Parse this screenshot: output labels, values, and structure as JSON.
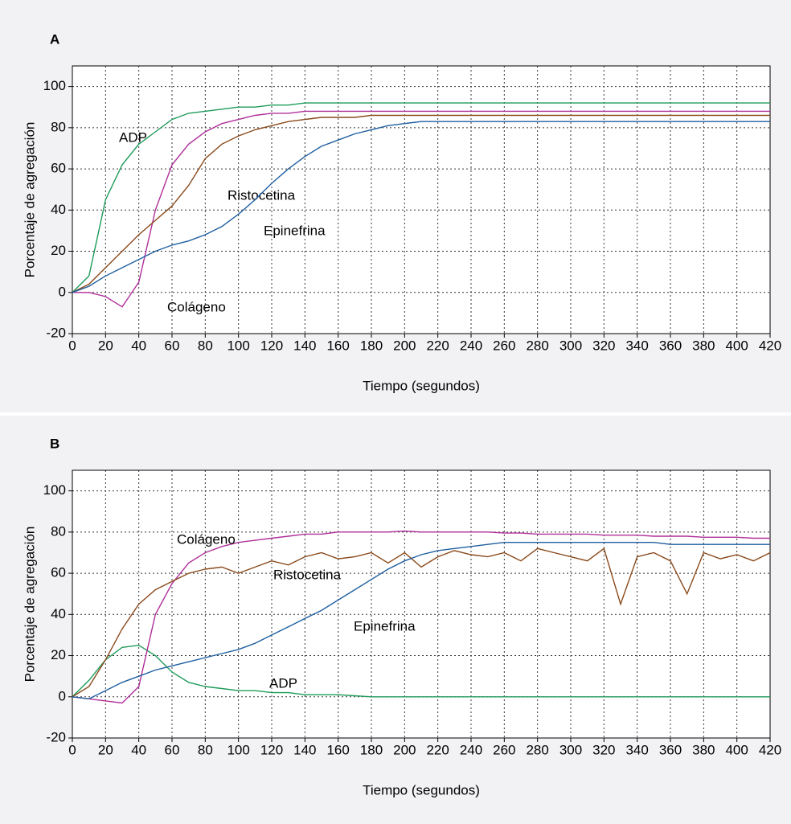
{
  "chart_data": [
    {
      "type": "line",
      "title": "A",
      "x_label": "Tiempo (segundos)",
      "y_label": "Porcentaje de agregación",
      "x": [
        0,
        10,
        20,
        30,
        40,
        50,
        60,
        70,
        80,
        90,
        100,
        110,
        120,
        130,
        140,
        150,
        160,
        170,
        180,
        190,
        200,
        210,
        220,
        230,
        240,
        250,
        260,
        270,
        280,
        290,
        300,
        310,
        320,
        330,
        340,
        350,
        360,
        370,
        380,
        390,
        400,
        410,
        420
      ],
      "xlim": [
        0,
        420
      ],
      "xticks": [
        0,
        20,
        40,
        60,
        80,
        100,
        120,
        140,
        160,
        180,
        200,
        220,
        240,
        260,
        280,
        300,
        320,
        340,
        360,
        380,
        400,
        420
      ],
      "ylim": [
        -20,
        110
      ],
      "yticks": [
        -20,
        0,
        20,
        40,
        60,
        80,
        100
      ],
      "grid": true,
      "series": [
        {
          "name": "ADP",
          "color": "#1e9b5a",
          "values": [
            0,
            8,
            45,
            62,
            72,
            78,
            84,
            87,
            88,
            89,
            90,
            90,
            91,
            91,
            92,
            92,
            92,
            92,
            92,
            92,
            92,
            92,
            92,
            92,
            92,
            92,
            92,
            92,
            92,
            92,
            92,
            92,
            92,
            92,
            92,
            92,
            92,
            92,
            92,
            92,
            92,
            92,
            92
          ]
        },
        {
          "name": "Colágeno",
          "color": "#b0309a",
          "values": [
            0,
            0,
            -2,
            -7,
            5,
            40,
            62,
            72,
            78,
            82,
            84,
            86,
            87,
            87,
            88,
            88,
            88,
            88,
            88,
            88,
            88,
            88,
            88,
            88,
            88,
            88,
            88,
            88,
            88,
            88,
            88,
            88,
            88,
            88,
            88,
            88,
            88,
            88,
            88,
            88,
            88,
            88,
            88
          ]
        },
        {
          "name": "Ristocetina",
          "color": "#8a4a1c",
          "values": [
            0,
            4,
            12,
            20,
            28,
            35,
            42,
            52,
            65,
            72,
            76,
            79,
            81,
            83,
            84,
            85,
            85,
            85,
            86,
            86,
            86,
            86,
            86,
            86,
            86,
            86,
            86,
            86,
            86,
            86,
            86,
            86,
            86,
            86,
            86,
            86,
            86,
            86,
            86,
            86,
            86,
            86,
            86
          ]
        },
        {
          "name": "Epinefrina",
          "color": "#1f5fa0",
          "values": [
            0,
            3,
            8,
            12,
            16,
            20,
            23,
            25,
            28,
            32,
            38,
            45,
            53,
            60,
            66,
            71,
            74,
            77,
            79,
            81,
            82,
            83,
            83,
            83,
            83,
            83,
            83,
            83,
            83,
            83,
            83,
            83,
            83,
            83,
            83,
            83,
            83,
            83,
            83,
            83,
            83,
            83,
            83
          ]
        }
      ]
    },
    {
      "type": "line",
      "title": "B",
      "x_label": "Tiempo (segundos)",
      "y_label": "Porcentaje de agregación",
      "x": [
        0,
        10,
        20,
        30,
        40,
        50,
        60,
        70,
        80,
        90,
        100,
        110,
        120,
        130,
        140,
        150,
        160,
        170,
        180,
        190,
        200,
        210,
        220,
        230,
        240,
        250,
        260,
        270,
        280,
        290,
        300,
        310,
        320,
        330,
        340,
        350,
        360,
        370,
        380,
        390,
        400,
        410,
        420
      ],
      "xlim": [
        0,
        420
      ],
      "xticks": [
        0,
        20,
        40,
        60,
        80,
        100,
        120,
        140,
        160,
        180,
        200,
        220,
        240,
        260,
        280,
        300,
        320,
        340,
        360,
        380,
        400,
        420
      ],
      "ylim": [
        -20,
        110
      ],
      "yticks": [
        -20,
        0,
        20,
        40,
        60,
        80,
        100
      ],
      "grid": true,
      "series": [
        {
          "name": "ADP",
          "color": "#1e9b5a",
          "values": [
            0,
            8,
            18,
            24,
            25,
            20,
            12,
            7,
            5,
            4,
            3,
            3,
            2,
            2,
            1,
            1,
            1,
            0.5,
            0,
            0,
            0,
            0,
            0,
            0,
            0,
            0,
            0,
            0,
            0,
            0,
            0,
            0,
            0,
            0,
            0,
            0,
            0,
            0,
            0,
            0,
            0,
            0,
            0
          ]
        },
        {
          "name": "Colágeno",
          "color": "#b0309a",
          "values": [
            0,
            -1,
            -2,
            -3,
            5,
            40,
            55,
            65,
            70,
            73,
            75,
            76,
            77,
            78,
            79,
            79,
            80,
            80,
            80,
            80,
            80.5,
            80,
            80,
            80,
            80,
            80,
            79.5,
            79.5,
            79,
            79,
            79,
            79,
            78.5,
            78.5,
            78.5,
            78,
            78,
            78,
            77.5,
            77.5,
            77.5,
            77,
            77
          ]
        },
        {
          "name": "Ristocetina",
          "color": "#8a4a1c",
          "values": [
            0,
            5,
            18,
            33,
            45,
            52,
            56,
            60,
            62,
            63,
            60,
            63,
            66,
            64,
            68,
            70,
            67,
            68,
            70,
            65,
            70,
            63,
            68,
            71,
            69,
            68,
            70,
            66,
            72,
            70,
            68,
            66,
            72,
            45,
            68,
            70,
            66,
            50,
            70,
            67,
            69,
            66,
            70
          ]
        },
        {
          "name": "Epinefrina",
          "color": "#1f5fa0",
          "values": [
            0,
            -1,
            3,
            7,
            10,
            13,
            15,
            17,
            19,
            21,
            23,
            26,
            30,
            34,
            38,
            42,
            47,
            52,
            57,
            62,
            66,
            69,
            71,
            72,
            73,
            74,
            75,
            75,
            75,
            75,
            75,
            75,
            75,
            75,
            75,
            75,
            74,
            74,
            74,
            74,
            74,
            74,
            74
          ]
        }
      ]
    }
  ]
}
